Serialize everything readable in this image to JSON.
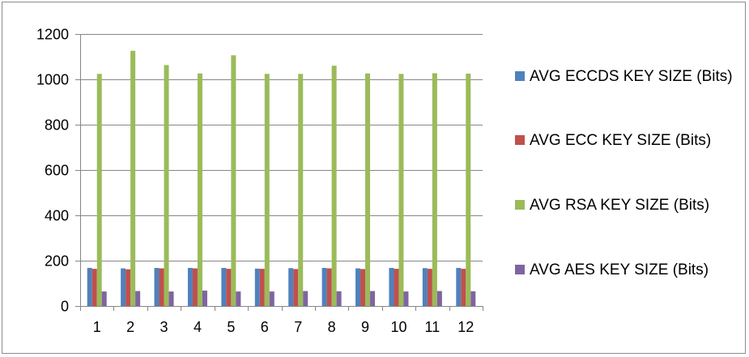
{
  "chart_data": {
    "type": "bar",
    "title": "",
    "xlabel": "",
    "ylabel": "",
    "ylim": [
      0,
      1200
    ],
    "yticks": [
      0,
      200,
      400,
      600,
      800,
      1000,
      1200
    ],
    "categories": [
      "1",
      "2",
      "3",
      "4",
      "5",
      "6",
      "7",
      "8",
      "9",
      "10",
      "11",
      "12"
    ],
    "grid": "horizontal major gridlines",
    "legend_position": "right",
    "series": [
      {
        "name": "AVG ECCDS KEY SIZE (Bits)",
        "color": "#4F81BD",
        "values": [
          168,
          166,
          168,
          168,
          168,
          165,
          167,
          168,
          166,
          168,
          167,
          168
        ]
      },
      {
        "name": "AVG ECC KEY SIZE (Bits)",
        "color": "#C0504D",
        "values": [
          164,
          162,
          166,
          166,
          164,
          164,
          163,
          166,
          163,
          164,
          164,
          164
        ]
      },
      {
        "name": "AVG RSA KEY SIZE (Bits)",
        "color": "#9BBB59",
        "values": [
          1024,
          1126,
          1063,
          1026,
          1106,
          1024,
          1024,
          1060,
          1026,
          1024,
          1027,
          1025
        ]
      },
      {
        "name": "AVG AES KEY SIZE (Bits)",
        "color": "#8064A2",
        "values": [
          64,
          66,
          64,
          68,
          64,
          64,
          66,
          65,
          66,
          64,
          66,
          65
        ]
      }
    ]
  }
}
